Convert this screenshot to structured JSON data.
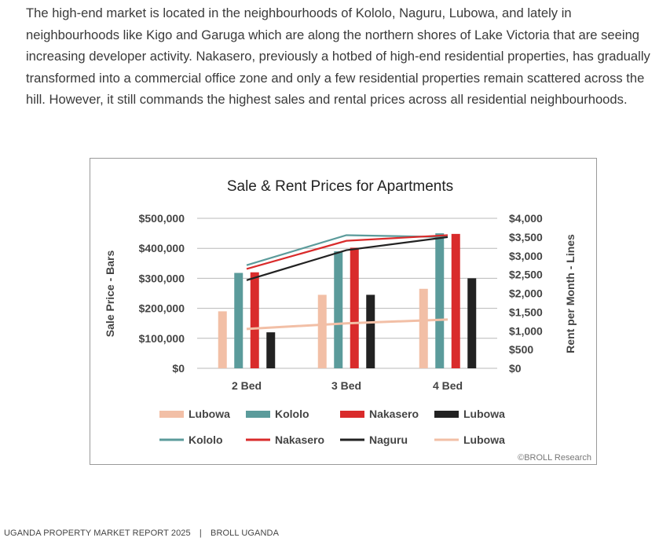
{
  "paragraph": "The high-end market is located in the neighbourhoods of Kololo, Naguru, Lubowa, and lately in neighbourhoods like Kigo and Garuga which are along the northern shores of Lake Victoria that are seeing increasing developer activity. Nakasero, previously a hotbed of high-end residential properties, has gradually transformed into a commercial office zone and only a few residential properties remain scattered across the hill. However, it still commands the highest sales and rental prices across all residential neighbourhoods.",
  "footer": {
    "report": "UGANDA PROPERTY MARKET REPORT 2025",
    "separator": "|",
    "company": "BROLL UGANDA"
  },
  "chart_data": {
    "type": "bar",
    "title": "Sale & Rent Prices for Apartments",
    "ylabel": "Sale Price - Bars",
    "y2label": "Rent per Month - Lines",
    "categories": [
      "2 Bed",
      "3 Bed",
      "4 Bed"
    ],
    "ylim": [
      0,
      500000
    ],
    "y2lim": [
      0,
      4000
    ],
    "yticks": [
      "$0",
      "$100,000",
      "$200,000",
      "$300,000",
      "$400,000",
      "$500,000"
    ],
    "y2ticks": [
      "$0",
      "$500",
      "$1,000",
      "$1,500",
      "$2,000",
      "$2,500",
      "$3,000",
      "$3,500",
      "$4,000"
    ],
    "bar_series": [
      {
        "name": "Lubowa",
        "color": "#f2bfa6",
        "values": [
          190000,
          245000,
          265000
        ]
      },
      {
        "name": "Kololo",
        "color": "#5b9b9b",
        "values": [
          318000,
          390000,
          450000
        ]
      },
      {
        "name": "Nakasero",
        "color": "#d92b2b",
        "values": [
          320000,
          402000,
          448000
        ]
      },
      {
        "name": "Lubowa",
        "color": "#222222",
        "values": [
          120000,
          245000,
          300000
        ]
      }
    ],
    "line_series": [
      {
        "name": "Kololo",
        "color": "#5b9b9b",
        "values": [
          2750,
          3550,
          3500
        ]
      },
      {
        "name": "Nakasero",
        "color": "#d92b2b",
        "values": [
          2650,
          3400,
          3550
        ]
      },
      {
        "name": "Naguru",
        "color": "#222222",
        "values": [
          2350,
          3150,
          3500
        ]
      },
      {
        "name": "Lubowa",
        "color": "#f2bfa6",
        "values": [
          1050,
          1200,
          1300
        ]
      }
    ],
    "source": "©BROLL Research",
    "legend_position": "bottom"
  }
}
